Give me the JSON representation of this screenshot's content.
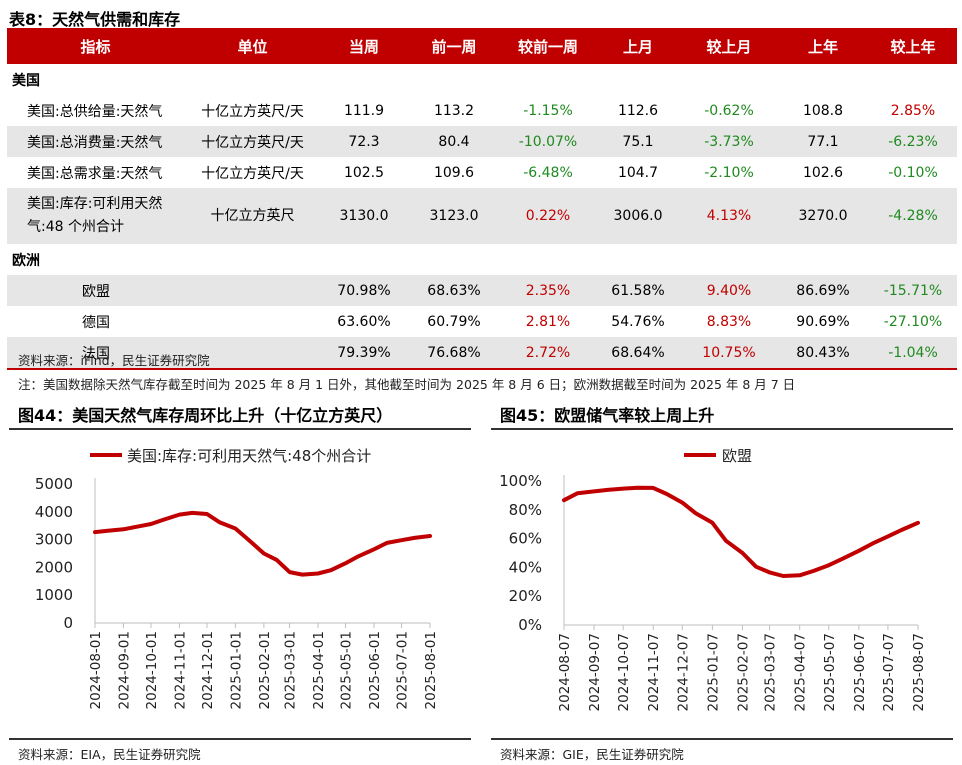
{
  "table": {
    "title": "表8：天然气供需和库存",
    "headers": [
      "指标",
      "单位",
      "当周",
      "前一周",
      "较前一周",
      "上月",
      "较上月",
      "上年",
      "较上年"
    ],
    "sections": [
      {
        "label": "美国",
        "rows": [
          {
            "name": "美国:总供给量:天然气",
            "unit": "十亿立方英尺/天",
            "cur": "111.9",
            "prev_week": "113.2",
            "wow": "-1.15%",
            "last_month": "112.6",
            "mom": "-0.62%",
            "last_year": "108.8",
            "yoy": "2.85%"
          },
          {
            "name": "美国:总消费量:天然气",
            "unit": "十亿立方英尺/天",
            "cur": "72.3",
            "prev_week": "80.4",
            "wow": "-10.07%",
            "last_month": "75.1",
            "mom": "-3.73%",
            "last_year": "77.1",
            "yoy": "-6.23%"
          },
          {
            "name": "美国:总需求量:天然气",
            "unit": "十亿立方英尺/天",
            "cur": "102.5",
            "prev_week": "109.6",
            "wow": "-6.48%",
            "last_month": "104.7",
            "mom": "-2.10%",
            "last_year": "102.6",
            "yoy": "-0.10%"
          },
          {
            "name_line1": "美国:库存:可利用天然",
            "name_line2": "气:48 个州合计",
            "unit": "十亿立方英尺",
            "cur": "3130.0",
            "prev_week": "3123.0",
            "wow": "0.22%",
            "last_month": "3006.0",
            "mom": "4.13%",
            "last_year": "3270.0",
            "yoy": "-4.28%"
          }
        ]
      },
      {
        "label": "欧洲",
        "rows": [
          {
            "name": "欧盟",
            "unit": "",
            "cur": "70.98%",
            "prev_week": "68.63%",
            "wow": "2.35%",
            "last_month": "61.58%",
            "mom": "9.40%",
            "last_year": "86.69%",
            "yoy": "-15.71%"
          },
          {
            "name": "德国",
            "unit": "",
            "cur": "63.60%",
            "prev_week": "60.79%",
            "wow": "2.81%",
            "last_month": "54.76%",
            "mom": "8.83%",
            "last_year": "90.69%",
            "yoy": "-27.10%"
          },
          {
            "name": "法国",
            "unit": "",
            "cur": "79.39%",
            "prev_week": "76.68%",
            "wow": "2.72%",
            "last_month": "68.64%",
            "mom": "10.75%",
            "last_year": "80.43%",
            "yoy": "-1.04%"
          }
        ]
      }
    ],
    "source": "资料来源：iFind，民生证券研究院",
    "note": "注：美国数据除天然气库存截至时间为 2025 年 8 月 1 日外，其他截至时间为 2025 年 8 月 6 日；欧洲数据截至时间为 2025 年 8 月 7 日"
  },
  "colors": {
    "accent": "#c00000",
    "positive": "#c00000",
    "negative": "#1f8a1f",
    "grey_row": "#e7e6e6"
  },
  "chart_data": [
    {
      "type": "line",
      "title": "图44：美国天然气库存周环比上升（十亿立方英尺）",
      "series": [
        {
          "name": "美国:库存:可利用天然气:48个州合计",
          "color": "#c00000",
          "x": [
            "2024-08-01",
            "2024-08-15",
            "2024-09-01",
            "2024-09-15",
            "2024-10-01",
            "2024-10-15",
            "2024-11-01",
            "2024-11-15",
            "2024-12-01",
            "2024-12-15",
            "2025-01-01",
            "2025-01-15",
            "2025-02-01",
            "2025-02-15",
            "2025-03-01",
            "2025-03-15",
            "2025-04-01",
            "2025-04-15",
            "2025-05-01",
            "2025-05-15",
            "2025-06-01",
            "2025-06-15",
            "2025-07-01",
            "2025-07-15",
            "2025-08-01"
          ],
          "values": [
            3270,
            3320,
            3370,
            3460,
            3560,
            3720,
            3900,
            3960,
            3920,
            3620,
            3400,
            3000,
            2500,
            2270,
            1830,
            1740,
            1780,
            1900,
            2150,
            2400,
            2650,
            2880,
            2980,
            3060,
            3130
          ]
        }
      ],
      "ylim": [
        0,
        5000
      ],
      "yticks": [
        "0",
        "1000",
        "2000",
        "3000",
        "4000",
        "5000"
      ],
      "xticks": [
        "2024-08-01",
        "2024-09-01",
        "2024-10-01",
        "2024-11-01",
        "2024-12-01",
        "2025-01-01",
        "2025-02-01",
        "2025-03-01",
        "2025-04-01",
        "2025-05-01",
        "2025-06-01",
        "2025-07-01",
        "2025-08-01"
      ],
      "legend": "top",
      "source": "资料来源：EIA，民生证券研究院"
    },
    {
      "type": "line",
      "title": "图45：欧盟储气率较上周上升",
      "series": [
        {
          "name": "欧盟",
          "color": "#c00000",
          "x": [
            "2024-08-07",
            "2024-08-21",
            "2024-09-07",
            "2024-09-21",
            "2024-10-07",
            "2024-10-21",
            "2024-11-07",
            "2024-11-21",
            "2024-12-07",
            "2024-12-21",
            "2025-01-07",
            "2025-01-21",
            "2025-02-07",
            "2025-02-21",
            "2025-03-07",
            "2025-03-21",
            "2025-04-07",
            "2025-04-21",
            "2025-05-07",
            "2025-05-21",
            "2025-06-07",
            "2025-06-21",
            "2025-07-07",
            "2025-07-21",
            "2025-08-07"
          ],
          "values": [
            86.7,
            91.5,
            92.8,
            93.8,
            94.7,
            95.3,
            95.2,
            91.0,
            85.0,
            77.5,
            71.0,
            58.5,
            50.0,
            40.5,
            36.5,
            34.0,
            34.5,
            37.5,
            41.5,
            46.0,
            51.5,
            56.5,
            61.5,
            66.0,
            71.0
          ]
        }
      ],
      "ylim": [
        0,
        100
      ],
      "yticks": [
        "0%",
        "20%",
        "40%",
        "60%",
        "80%",
        "100%"
      ],
      "xticks": [
        "2024-08-07",
        "2024-09-07",
        "2024-10-07",
        "2024-11-07",
        "2024-12-07",
        "2025-01-07",
        "2025-02-07",
        "2025-03-07",
        "2025-04-07",
        "2025-05-07",
        "2025-06-07",
        "2025-07-07",
        "2025-08-07"
      ],
      "legend": "top",
      "source": "资料来源：GIE，民生证券研究院"
    }
  ]
}
